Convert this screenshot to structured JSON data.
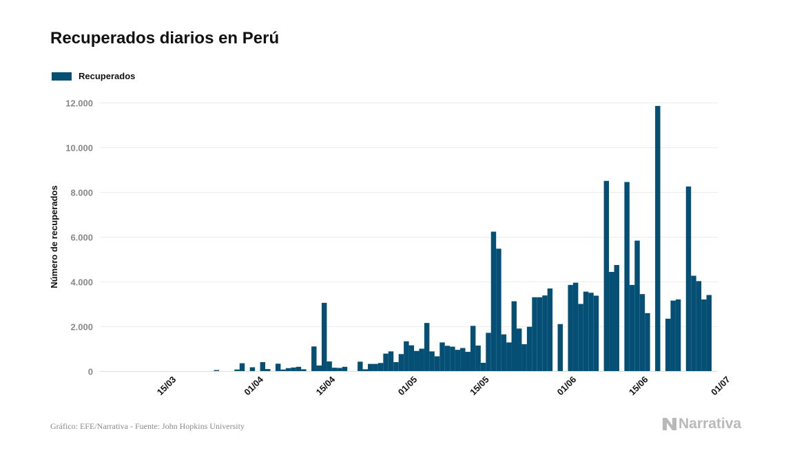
{
  "chart_data": {
    "type": "bar",
    "title": "Recuperados diarios en Perú",
    "legend": [
      {
        "name": "Recuperados",
        "color": "#064f74"
      }
    ],
    "ylabel": "Número de recuperados",
    "xlabel": "",
    "ylim": [
      0,
      12000
    ],
    "yticks": [
      0,
      2000,
      4000,
      6000,
      8000,
      10000,
      12000
    ],
    "ytick_labels": [
      "0",
      "2.000",
      "4.000",
      "6.000",
      "8.000",
      "10.000",
      "12.000"
    ],
    "xtick_labels": [
      "15/03",
      "01/04",
      "15/04",
      "01/05",
      "15/05",
      "01/06",
      "15/06",
      "01/07"
    ],
    "xtick_day_index": [
      9,
      26,
      40,
      56,
      70,
      87,
      101,
      117
    ],
    "start_date": "06/03",
    "grid": true,
    "series": [
      {
        "name": "Recuperados",
        "color": "#064f74",
        "values": [
          0,
          0,
          0,
          0,
          0,
          0,
          0,
          0,
          0,
          0,
          0,
          0,
          0,
          0,
          0,
          0,
          0,
          0,
          45,
          0,
          0,
          0,
          70,
          350,
          0,
          170,
          0,
          400,
          90,
          0,
          330,
          70,
          130,
          160,
          190,
          80,
          0,
          1100,
          250,
          3050,
          430,
          150,
          140,
          190,
          0,
          0,
          420,
          80,
          320,
          320,
          360,
          780,
          880,
          400,
          760,
          1330,
          1150,
          900,
          1000,
          2150,
          880,
          660,
          1280,
          1130,
          1090,
          950,
          1030,
          860,
          2020,
          1140,
          370,
          1710,
          6230,
          5470,
          1640,
          1280,
          3120,
          1900,
          1200,
          1980,
          3300,
          3300,
          3380,
          3690,
          0,
          2100,
          0,
          3850,
          3950,
          3000,
          3550,
          3500,
          3370,
          0,
          8500,
          4430,
          4740,
          0,
          8450,
          3850,
          5830,
          3440,
          2590,
          0,
          11850,
          0,
          2340,
          3150,
          3200,
          0,
          8250,
          4260,
          4020,
          3200,
          3400
        ]
      }
    ]
  },
  "source": "Gráfico: EFE/Narrativa - Fuente: John Hopkins University",
  "brand": "Narrativa"
}
